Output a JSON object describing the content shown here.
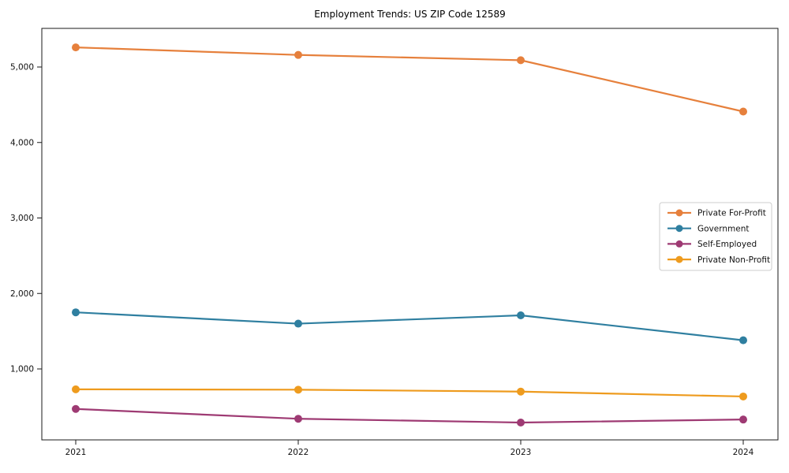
{
  "title": "Employment Trends: US ZIP Code 12589",
  "chart_data": {
    "type": "line",
    "title": "Employment Trends: US ZIP Code 12589",
    "x": [
      2021,
      2022,
      2023,
      2024
    ],
    "xtick_labels": [
      "2021",
      "2022",
      "2023",
      "2024"
    ],
    "yticks": [
      1000,
      2000,
      3000,
      4000,
      5000
    ],
    "ytick_labels": [
      "1,000",
      "2,000",
      "3,000",
      "4,000",
      "5,000"
    ],
    "ylim": [
      60,
      5510
    ],
    "grid": false,
    "legend_position": "center right",
    "marker": "circle",
    "series": [
      {
        "name": "Private For-Profit",
        "color": "#E6803C",
        "values": [
          5260,
          5160,
          5090,
          4410
        ]
      },
      {
        "name": "Government",
        "color": "#2F7FA0",
        "values": [
          1750,
          1600,
          1710,
          1380
        ]
      },
      {
        "name": "Self-Employed",
        "color": "#9E3A73",
        "values": [
          470,
          340,
          290,
          330
        ]
      },
      {
        "name": "Private Non-Profit",
        "color": "#EE9B1E",
        "values": [
          730,
          725,
          700,
          635
        ]
      }
    ],
    "axis_color": "#1a1a1a",
    "legend_border_color": "#cccccc"
  }
}
